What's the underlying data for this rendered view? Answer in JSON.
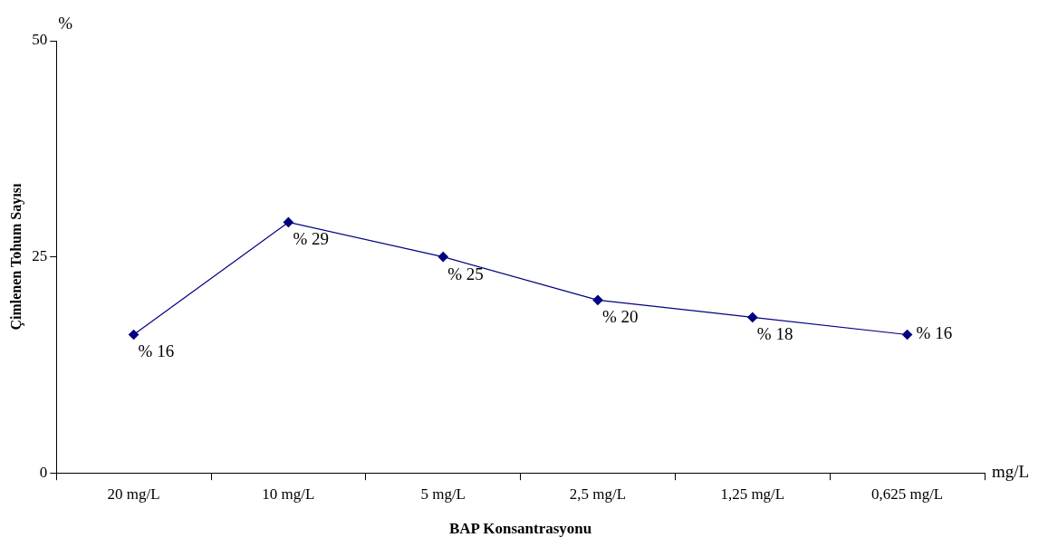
{
  "chart_data": {
    "type": "line",
    "xlabel": "BAP Konsantrasyonu",
    "ylabel": "Çimlenen Tohum Sayısı",
    "annotations": [
      "%",
      "mg/L"
    ],
    "categories": [
      "20 mg/L",
      "10 mg/L",
      "5 mg/L",
      "2,5 mg/L",
      "1,25 mg/L",
      "0,625 mg/L"
    ],
    "series": [
      {
        "color": "#000080",
        "values": [
          16,
          29,
          25,
          20,
          18,
          16
        ],
        "value_labels": [
          "% 16",
          "% 29",
          "% 25",
          "% 20",
          "% 18",
          "% 16"
        ]
      }
    ],
    "ylim": [
      0,
      50
    ],
    "yticks": [
      0,
      25,
      50
    ],
    "grid": false,
    "legend": false,
    "marker": "diamond",
    "line_style": "solid"
  }
}
